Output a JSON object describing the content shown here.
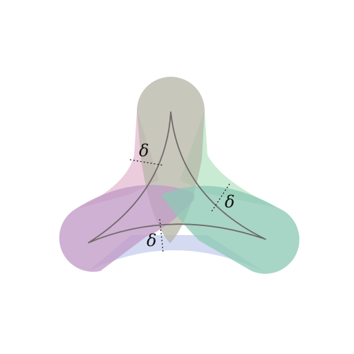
{
  "diagram": {
    "labels": {
      "delta_left": "δ",
      "delta_right": "δ",
      "delta_bottom": "δ"
    },
    "colors": {
      "background": "#ffffff",
      "top_lobe": "#b7b7a9",
      "left_lobe": "#c29bc6",
      "right_lobe": "#8ec9b6",
      "pink_gap": "#e6bfd3",
      "green_gap": "#bde6c8",
      "blue_gap": "#c9d1ee",
      "curve": "#6f6a69",
      "dotted": "#111111"
    }
  }
}
